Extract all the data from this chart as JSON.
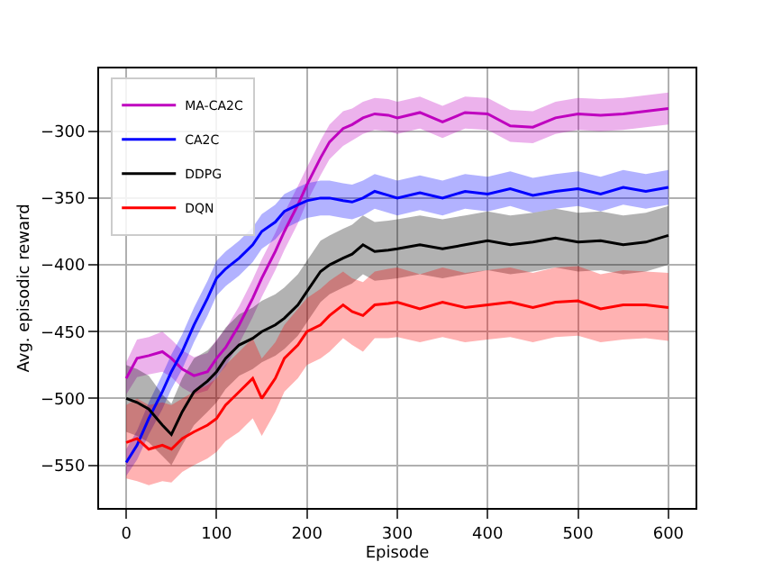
{
  "chart_data": {
    "type": "line",
    "xlabel": "Episode",
    "ylabel": "Avg. episodic reward",
    "xlim": [
      -30,
      630
    ],
    "ylim": [
      -582,
      -253
    ],
    "xticks": [
      0,
      100,
      200,
      300,
      400,
      500,
      600
    ],
    "yticks": [
      -550,
      -500,
      -450,
      -400,
      -350,
      -300
    ],
    "grid": true,
    "legend": "top left",
    "marker": "none",
    "line_style": "solid",
    "x": [
      0,
      12,
      25,
      40,
      50,
      62,
      75,
      90,
      100,
      110,
      125,
      140,
      150,
      165,
      175,
      190,
      200,
      215,
      225,
      240,
      250,
      262,
      275,
      290,
      300,
      325,
      350,
      375,
      400,
      425,
      450,
      475,
      500,
      525,
      550,
      575,
      600
    ],
    "series": [
      {
        "name": "MA-CA2C",
        "color": "#bf00bf",
        "values": [
          -485,
          -470,
          -468,
          -465,
          -470,
          -478,
          -483,
          -480,
          -470,
          -462,
          -445,
          -425,
          -410,
          -390,
          -375,
          -355,
          -340,
          -320,
          -308,
          -298,
          -295,
          -290,
          -287,
          -288,
          -290,
          -286,
          -293,
          -286,
          -287,
          -296,
          -297,
          -290,
          -287,
          -288,
          -287,
          -285,
          -283
        ],
        "lower": [
          -497,
          -484,
          -482,
          -480,
          -484,
          -492,
          -497,
          -494,
          -484,
          -476,
          -459,
          -439,
          -424,
          -404,
          -389,
          -369,
          -353,
          -333,
          -321,
          -311,
          -307,
          -302,
          -299,
          -300,
          -302,
          -298,
          -305,
          -298,
          -299,
          -308,
          -309,
          -302,
          -299,
          -300,
          -299,
          -297,
          -295
        ],
        "upper": [
          -473,
          -456,
          -454,
          -450,
          -456,
          -464,
          -469,
          -466,
          -456,
          -448,
          -431,
          -411,
          -396,
          -376,
          -361,
          -341,
          -327,
          -307,
          -295,
          -285,
          -283,
          -278,
          -275,
          -276,
          -278,
          -274,
          -281,
          -274,
          -275,
          -284,
          -285,
          -278,
          -275,
          -276,
          -275,
          -273,
          -271
        ]
      },
      {
        "name": "CA2C",
        "color": "#0000ff",
        "values": [
          -548,
          -535,
          -515,
          -495,
          -480,
          -465,
          -445,
          -425,
          -410,
          -403,
          -395,
          -385,
          -375,
          -368,
          -360,
          -355,
          -352,
          -350,
          -350,
          -352,
          -353,
          -350,
          -345,
          -348,
          -350,
          -346,
          -350,
          -345,
          -347,
          -343,
          -348,
          -345,
          -343,
          -347,
          -342,
          -345,
          -342
        ],
        "lower": [
          -558,
          -546,
          -527,
          -508,
          -493,
          -478,
          -458,
          -438,
          -423,
          -416,
          -408,
          -398,
          -388,
          -381,
          -373,
          -368,
          -365,
          -363,
          -363,
          -365,
          -366,
          -363,
          -358,
          -361,
          -363,
          -359,
          -363,
          -358,
          -360,
          -356,
          -361,
          -358,
          -356,
          -360,
          -355,
          -358,
          -355
        ],
        "upper": [
          -538,
          -524,
          -503,
          -482,
          -467,
          -452,
          -432,
          -412,
          -397,
          -390,
          -382,
          -372,
          -362,
          -355,
          -347,
          -342,
          -339,
          -337,
          -337,
          -339,
          -340,
          -337,
          -332,
          -335,
          -337,
          -333,
          -337,
          -332,
          -334,
          -330,
          -335,
          -332,
          -330,
          -334,
          -329,
          -332,
          -329
        ]
      },
      {
        "name": "DDPG",
        "color": "#000000",
        "values": [
          -500,
          -503,
          -508,
          -520,
          -527,
          -510,
          -495,
          -487,
          -480,
          -470,
          -460,
          -455,
          -450,
          -445,
          -440,
          -430,
          -420,
          -405,
          -400,
          -395,
          -392,
          -385,
          -390,
          -389,
          -388,
          -385,
          -388,
          -385,
          -382,
          -385,
          -383,
          -380,
          -383,
          -382,
          -385,
          -383,
          -378
        ],
        "lower": [
          -525,
          -528,
          -533,
          -543,
          -550,
          -535,
          -520,
          -510,
          -503,
          -493,
          -483,
          -478,
          -473,
          -468,
          -463,
          -453,
          -443,
          -428,
          -422,
          -417,
          -414,
          -407,
          -412,
          -411,
          -410,
          -407,
          -410,
          -407,
          -404,
          -407,
          -405,
          -402,
          -405,
          -404,
          -407,
          -405,
          -400
        ],
        "upper": [
          -475,
          -478,
          -483,
          -497,
          -504,
          -485,
          -470,
          -464,
          -457,
          -447,
          -437,
          -432,
          -427,
          -422,
          -417,
          -407,
          -397,
          -382,
          -378,
          -373,
          -370,
          -363,
          -368,
          -367,
          -366,
          -363,
          -366,
          -363,
          -360,
          -363,
          -361,
          -358,
          -361,
          -360,
          -363,
          -361,
          -356
        ]
      },
      {
        "name": "DQN",
        "color": "#ff0000",
        "values": [
          -533,
          -530,
          -538,
          -535,
          -538,
          -530,
          -525,
          -520,
          -515,
          -505,
          -495,
          -485,
          -500,
          -485,
          -470,
          -460,
          -450,
          -445,
          -438,
          -430,
          -435,
          -438,
          -430,
          -429,
          -428,
          -433,
          -428,
          -432,
          -430,
          -428,
          -432,
          -428,
          -427,
          -433,
          -430,
          -430,
          -432
        ],
        "lower": [
          -560,
          -562,
          -565,
          -562,
          -563,
          -555,
          -550,
          -545,
          -540,
          -532,
          -525,
          -515,
          -528,
          -510,
          -495,
          -485,
          -475,
          -470,
          -465,
          -455,
          -460,
          -465,
          -455,
          -455,
          -454,
          -458,
          -454,
          -458,
          -456,
          -454,
          -458,
          -454,
          -453,
          -458,
          -456,
          -455,
          -457
        ],
        "upper": [
          -505,
          -500,
          -505,
          -503,
          -505,
          -500,
          -495,
          -490,
          -485,
          -475,
          -465,
          -455,
          -470,
          -458,
          -445,
          -433,
          -425,
          -418,
          -412,
          -405,
          -410,
          -413,
          -405,
          -403,
          -402,
          -407,
          -402,
          -406,
          -404,
          -402,
          -406,
          -402,
          -401,
          -407,
          -404,
          -405,
          -406
        ]
      }
    ]
  }
}
